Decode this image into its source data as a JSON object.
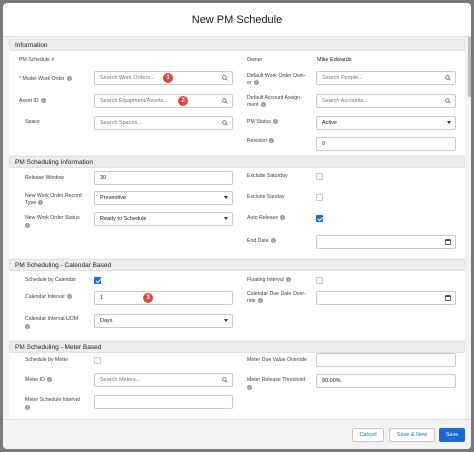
{
  "modal": {
    "title": "New PM Schedule"
  },
  "information": {
    "heading": "Information",
    "pm_schedule_no_label": "PM Schedule #",
    "model_work_order_label": "* Model Work Order",
    "model_work_order_placeholder": "Search Work Orders...",
    "asset_id_label": "Asset ID",
    "asset_id_placeholder": "Search Equipment/Assets...",
    "space_label": "Space",
    "space_placeholder": "Search Spaces...",
    "owner_label": "Owner",
    "owner_value": "Mike Edwards",
    "default_wo_owner_label_1": "Default Work Order Own-",
    "default_wo_owner_label_2": "er",
    "default_wo_owner_placeholder": "Search People...",
    "default_account_label_1": "Default Account Assign-",
    "default_account_label_2": "ment",
    "default_account_placeholder": "Search Accounts...",
    "pm_status_label": "PM Status",
    "pm_status_value": "Active",
    "revision_label": "Revision",
    "revision_value": "0"
  },
  "scheduling_info": {
    "heading": "PM Scheduling Information",
    "release_window_label": "Release Window",
    "release_window_value": "30",
    "new_wo_record_type_label_1": "New Work Order Record",
    "new_wo_record_type_label_2": "Type",
    "new_wo_record_type_value": "Preventive",
    "new_wo_status_label": "New Work Order Status",
    "new_wo_status_value": "Ready to Schedule",
    "exclude_saturday_label": "Exclude Saturday",
    "exclude_saturday_checked": false,
    "exclude_sunday_label": "Exclude Sunday",
    "exclude_sunday_checked": false,
    "auto_release_label": "Auto Release",
    "auto_release_checked": true,
    "end_date_label": "End Date",
    "end_date_value": ""
  },
  "calendar_based": {
    "heading": "PM Scheduling - Calendar Based",
    "schedule_by_calendar_label": "Schedule by Calendar",
    "schedule_by_calendar_checked": true,
    "calendar_interval_label": "Calendar Interval",
    "calendar_interval_value": "1",
    "calendar_interval_uom_label": "Calendar Interval UOM",
    "calendar_interval_uom_value": "Days",
    "floating_interval_label": "Floating Interval",
    "floating_interval_checked": false,
    "calendar_due_date_label_1": "Calendar Due Date Over-",
    "calendar_due_date_label_2": "ride",
    "calendar_due_date_value": ""
  },
  "meter_based": {
    "heading": "PM Scheduling - Meter Based",
    "schedule_by_meter_label": "Schedule by Meter",
    "schedule_by_meter_checked": false,
    "meter_id_label": "Meter ID",
    "meter_id_placeholder": "Search Meters...",
    "meter_schedule_interval_label_1": "Meter Schedule Interval",
    "meter_due_value_override_label": "Meter Due Value Override",
    "meter_release_threshold_label": "Meter Release Threshold",
    "meter_release_threshold_value": "90.00%"
  },
  "badges": {
    "b1": "1",
    "b2": "2",
    "b3": "3"
  },
  "info_glyph": "i",
  "footer": {
    "cancel": "Cancel",
    "save_new": "Save & New",
    "save": "Save"
  },
  "colors": {
    "brand": "#1b6ad4",
    "badge": "#e0463a",
    "overlay": "#7a7a7a"
  },
  "icons": [
    "search-icon",
    "chevron-down-icon",
    "calendar-icon",
    "info-icon",
    "checkbox-checked-icon"
  ]
}
